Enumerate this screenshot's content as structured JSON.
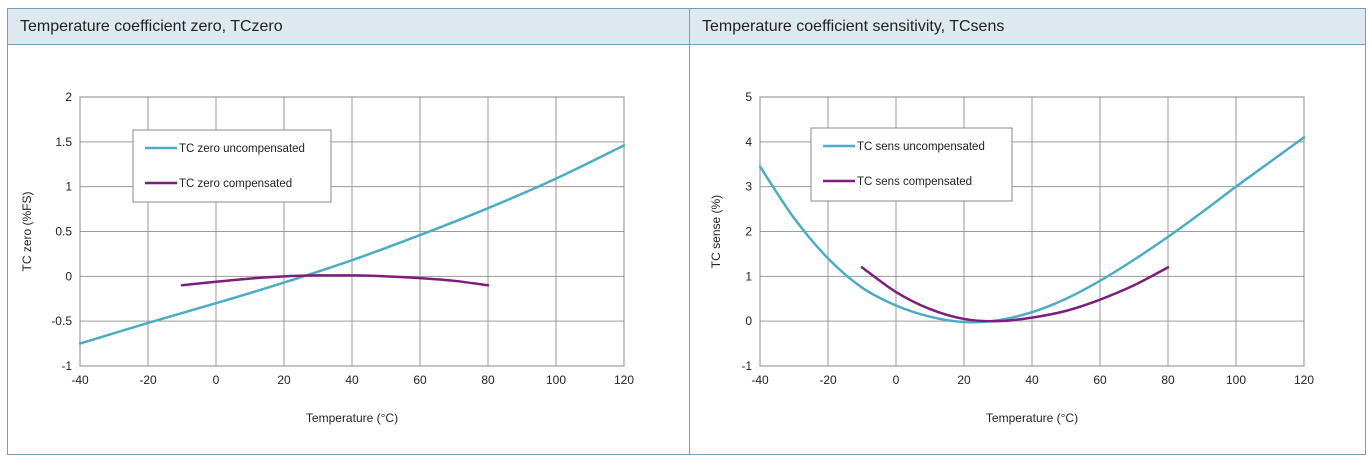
{
  "panels": [
    {
      "title": "Temperature coefficient zero, TCzero"
    },
    {
      "title": "Temperature coefficient sensitivity, TCsens"
    }
  ],
  "colors": {
    "uncompensated": "#4bacc6",
    "compensated": "#7d1e7e",
    "grid": "#9a9a9a",
    "border": "#6fa0b8",
    "header_bg": "#dde8ef"
  },
  "chart_data": [
    {
      "type": "line",
      "xlabel": "Temperature (°C)",
      "ylabel": "TC zero   (%FS)",
      "xlim": [
        -40,
        120
      ],
      "ylim": [
        -1,
        2
      ],
      "xticks": [
        -40,
        -20,
        0,
        20,
        40,
        60,
        80,
        100,
        120
      ],
      "yticks": [
        -1,
        -0.5,
        0,
        0.5,
        1,
        1.5,
        2
      ],
      "grid": true,
      "legend_position": "top-left",
      "series": [
        {
          "name": "TC zero uncompensated",
          "color": "#4bacc6",
          "x": [
            -40,
            -20,
            0,
            20,
            40,
            60,
            80,
            100,
            120
          ],
          "y": [
            -0.75,
            -0.52,
            -0.3,
            -0.07,
            0.18,
            0.46,
            0.76,
            1.09,
            1.46
          ]
        },
        {
          "name": "TC zero compensated",
          "color": "#7d1e7e",
          "x": [
            -10,
            0,
            10,
            20,
            30,
            40,
            50,
            60,
            70,
            80
          ],
          "y": [
            -0.1,
            -0.06,
            -0.025,
            0.0,
            0.01,
            0.01,
            0.0,
            -0.02,
            -0.05,
            -0.1
          ]
        }
      ]
    },
    {
      "type": "line",
      "xlabel": "Temperature (°C)",
      "ylabel": "TC sense  (%)",
      "xlim": [
        -40,
        120
      ],
      "ylim": [
        -1,
        5
      ],
      "xticks": [
        -40,
        -20,
        0,
        20,
        40,
        60,
        80,
        100,
        120
      ],
      "yticks": [
        -1,
        0,
        1,
        2,
        3,
        4,
        5
      ],
      "grid": true,
      "legend_position": "top-left",
      "series": [
        {
          "name": "TC sens uncompensated",
          "color": "#4bacc6",
          "x": [
            -40,
            -30,
            -20,
            -10,
            0,
            10,
            20,
            30,
            40,
            50,
            60,
            70,
            80,
            90,
            100,
            110,
            120
          ],
          "y": [
            3.45,
            2.3,
            1.4,
            0.75,
            0.35,
            0.1,
            -0.02,
            0.02,
            0.2,
            0.5,
            0.9,
            1.37,
            1.88,
            2.43,
            3.0,
            3.55,
            4.1
          ]
        },
        {
          "name": "TC sens compensated",
          "color": "#7d1e7e",
          "x": [
            -10,
            0,
            10,
            20,
            30,
            40,
            50,
            60,
            70,
            80
          ],
          "y": [
            1.2,
            0.65,
            0.27,
            0.05,
            0.0,
            0.08,
            0.23,
            0.48,
            0.8,
            1.2
          ]
        }
      ]
    }
  ]
}
